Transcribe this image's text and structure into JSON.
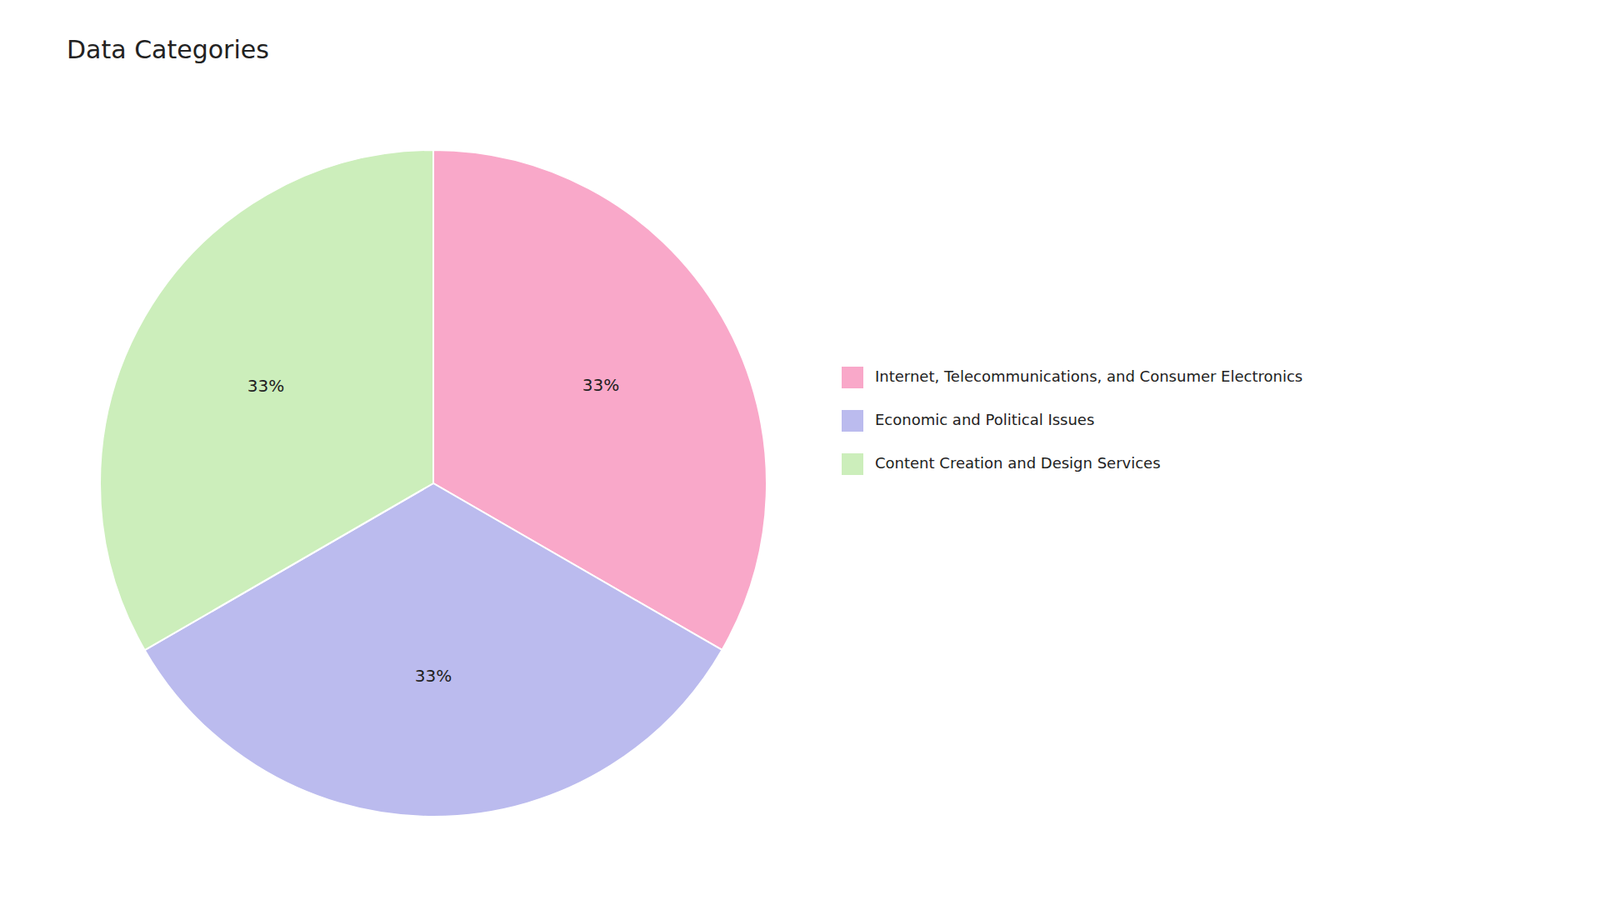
{
  "chart_data": {
    "type": "pie",
    "title": "Data Categories",
    "categories": [
      "Internet, Telecommunications, and Consumer Electronics",
      "Economic and Political Issues",
      "Content Creation and Design Services"
    ],
    "values": [
      33.33,
      33.33,
      33.34
    ],
    "value_labels": [
      "33%",
      "33%",
      "33%"
    ],
    "colors": [
      "#F9A8C9",
      "#BBBBEE",
      "#CCEEBB"
    ],
    "data_labels": true,
    "legend": "right"
  }
}
